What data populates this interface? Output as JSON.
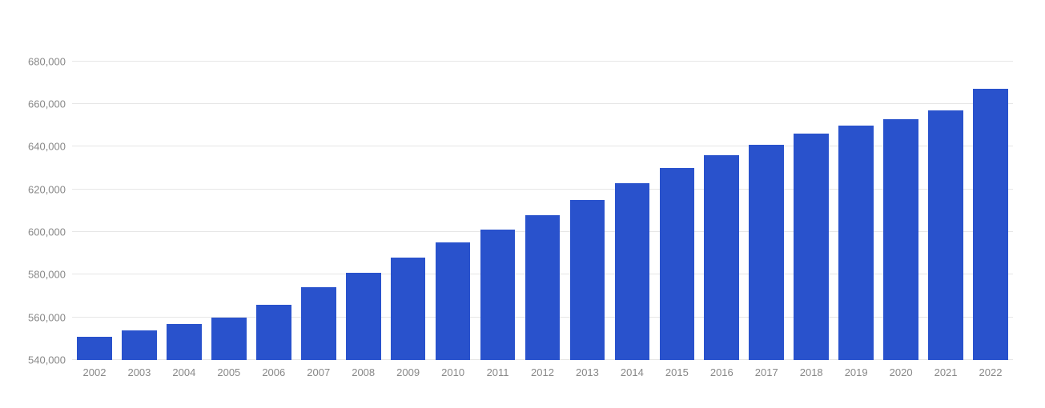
{
  "chart": {
    "type": "bar",
    "categories": [
      "2002",
      "2003",
      "2004",
      "2005",
      "2006",
      "2007",
      "2008",
      "2009",
      "2010",
      "2011",
      "2012",
      "2013",
      "2014",
      "2015",
      "2016",
      "2017",
      "2018",
      "2019",
      "2020",
      "2021",
      "2022"
    ],
    "values": [
      551000,
      554000,
      557000,
      560000,
      566000,
      574000,
      581000,
      588000,
      595000,
      601000,
      608000,
      615000,
      623000,
      630000,
      636000,
      641000,
      646000,
      650000,
      653000,
      657000,
      667000
    ],
    "bar_color": "#2952cc",
    "ylim": [
      540000,
      690000
    ],
    "yticks": [
      540000,
      560000,
      580000,
      600000,
      620000,
      640000,
      660000,
      680000
    ],
    "ytick_labels": [
      "540,000",
      "560,000",
      "580,000",
      "600,000",
      "620,000",
      "640,000",
      "660,000",
      "680,000"
    ],
    "background_color": "#ffffff",
    "grid_color": "#e6e6e6",
    "axis_label_color": "#888888",
    "axis_label_fontsize": 13,
    "bar_width_ratio": 0.78
  }
}
